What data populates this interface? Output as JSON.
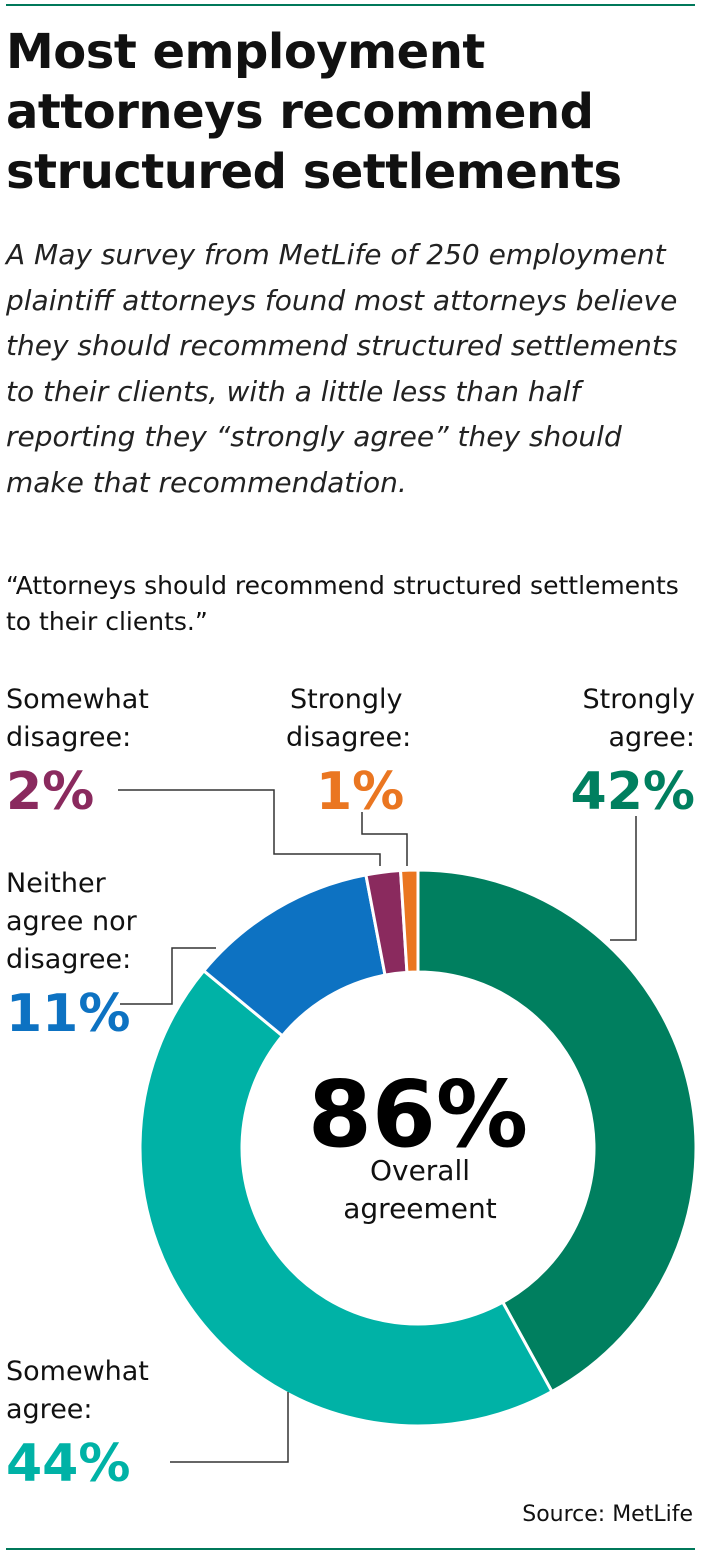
{
  "headline": "Most employment attorneys recommend structured settlements",
  "dek": "A May survey from MetLife of 250 employment plaintiff attorneys found most attorneys believe they should recommend structured settlements to their clients, with a little less than half reporting they “strongly agree” they should make that recommendation.",
  "question": "“Attorneys should recommend structured settlements to their clients.”",
  "source": "Source: MetLife",
  "center": {
    "value": "86%",
    "line1": "Overall",
    "line2": "agreement"
  },
  "labels": {
    "somewhat_disagree": {
      "line1": "Somewhat",
      "line2": "disagree:",
      "pct": "2%"
    },
    "strongly_disagree": {
      "line1": "Strongly",
      "line2": "disagree:",
      "pct": "1%"
    },
    "strongly_agree": {
      "line1": "Strongly",
      "line2": "agree:",
      "pct": "42%"
    },
    "neither": {
      "line1": "Neither",
      "line2": "agree nor",
      "line3": "disagree:",
      "pct": "11%"
    },
    "somewhat_agree": {
      "line1": "Somewhat",
      "line2": "agree:",
      "pct": "44%"
    }
  },
  "chart_data": {
    "type": "pie",
    "style": "donut",
    "categories": [
      "Strongly agree",
      "Somewhat agree",
      "Neither agree nor disagree",
      "Somewhat disagree",
      "Strongly disagree"
    ],
    "values": [
      42,
      44,
      11,
      2,
      1
    ],
    "colors": [
      "#007f5f",
      "#00b2a6",
      "#0d72c2",
      "#8a2a5e",
      "#ea7621"
    ],
    "unit": "%",
    "center_label": "86% Overall agreement"
  }
}
